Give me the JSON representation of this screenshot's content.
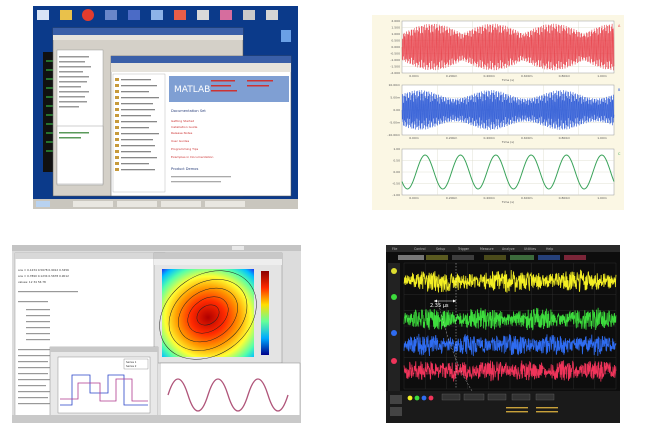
{
  "tile1": {
    "product_logo": "MATLAB",
    "sections": [
      "Documentation Set",
      "Product Demos"
    ],
    "links": [
      "Getting Started",
      "Installation Guide",
      "Release Notes",
      "User Guides",
      "Programming Tips",
      "Examples in Documentation"
    ],
    "colors": {
      "desktop": "#0b3a8a",
      "help_header": "#7f9fd3"
    }
  },
  "tile2": {
    "traces": [
      {
        "label": "A",
        "color": "#e8414a",
        "yticks": [
          "2.000",
          "1.500",
          "1.000",
          "0.500",
          "0.000",
          "-0.500",
          "-1.000",
          "-1.500",
          "-2.000"
        ],
        "xticks": [
          "0.00m",
          "0.200m",
          "0.400m",
          "0.600m",
          "0.800m",
          "1.00m"
        ],
        "xlabel": "Time (s)"
      },
      {
        "label": "B",
        "color": "#2f5bd6",
        "yticks": [
          "10.00m",
          "5.00m",
          "0.00",
          "-5.00m",
          "-10.00m"
        ],
        "xticks": [
          "0.00m",
          "0.200m",
          "0.400m",
          "0.600m",
          "0.800m",
          "1.00m"
        ],
        "xlabel": "Time (s)"
      },
      {
        "label": "C",
        "color": "#3aa35a",
        "yticks": [
          "1.00",
          "0.50",
          "0.00",
          "-0.50",
          "-1.00"
        ],
        "xticks": [
          "0.00m",
          "0.200m",
          "0.400m",
          "0.600m",
          "0.800m",
          "1.00m"
        ],
        "xlabel": "Time (s)"
      }
    ]
  },
  "tile3": {
    "console_lines": [
      "ans = 0.1234 0.5678 0.9012 0.3456",
      "ans = 0.7890 0.1234 0.5678 0.9012",
      "values: 12 34 56 78"
    ],
    "legend": [
      "Series 1",
      "Series 2"
    ],
    "colors": {
      "window": "#dcdcdc",
      "contour_hot": "#b00000",
      "sine": "#b0557a"
    }
  },
  "tile4": {
    "annotation": "2.35 µs",
    "menu": [
      "File",
      "Control",
      "Setup",
      "Trigger",
      "Measure",
      "Analyze",
      "Utilities",
      "Help"
    ],
    "channels": [
      {
        "name": "1",
        "color": "#f4ef24"
      },
      {
        "name": "2",
        "color": "#3ddc3d"
      },
      {
        "name": "3",
        "color": "#2f6cf0"
      },
      {
        "name": "4",
        "color": "#f0345a"
      }
    ]
  }
}
